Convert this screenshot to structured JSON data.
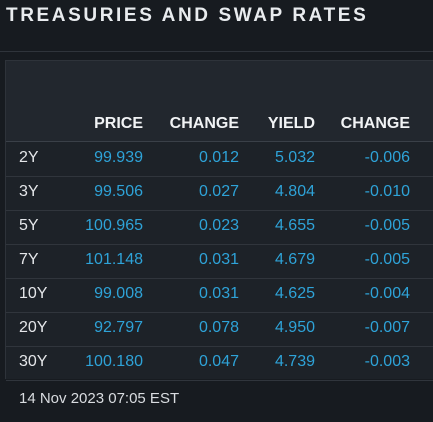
{
  "widget": {
    "title": "TREASURIES AND SWAP RATES",
    "columns": [
      "PRICE",
      "CHANGE",
      "YIELD",
      "CHANGE"
    ],
    "rows": [
      {
        "tenor": "2Y",
        "price": "99.939",
        "price_change": "0.012",
        "yield": "5.032",
        "yield_change": "-0.006"
      },
      {
        "tenor": "3Y",
        "price": "99.506",
        "price_change": "0.027",
        "yield": "4.804",
        "yield_change": "-0.010"
      },
      {
        "tenor": "5Y",
        "price": "100.965",
        "price_change": "0.023",
        "yield": "4.655",
        "yield_change": "-0.005"
      },
      {
        "tenor": "7Y",
        "price": "101.148",
        "price_change": "0.031",
        "yield": "4.679",
        "yield_change": "-0.005"
      },
      {
        "tenor": "10Y",
        "price": "99.008",
        "price_change": "0.031",
        "yield": "4.625",
        "yield_change": "-0.004"
      },
      {
        "tenor": "20Y",
        "price": "92.797",
        "price_change": "0.078",
        "yield": "4.950",
        "yield_change": "-0.007"
      },
      {
        "tenor": "30Y",
        "price": "100.180",
        "price_change": "0.047",
        "yield": "4.739",
        "yield_change": "-0.003"
      }
    ],
    "timestamp": "14 Nov 2023 07:05 EST"
  },
  "colors": {
    "background": "#171b20",
    "value_blue": "#2ea3d8",
    "text_light": "#e4e6e9"
  }
}
